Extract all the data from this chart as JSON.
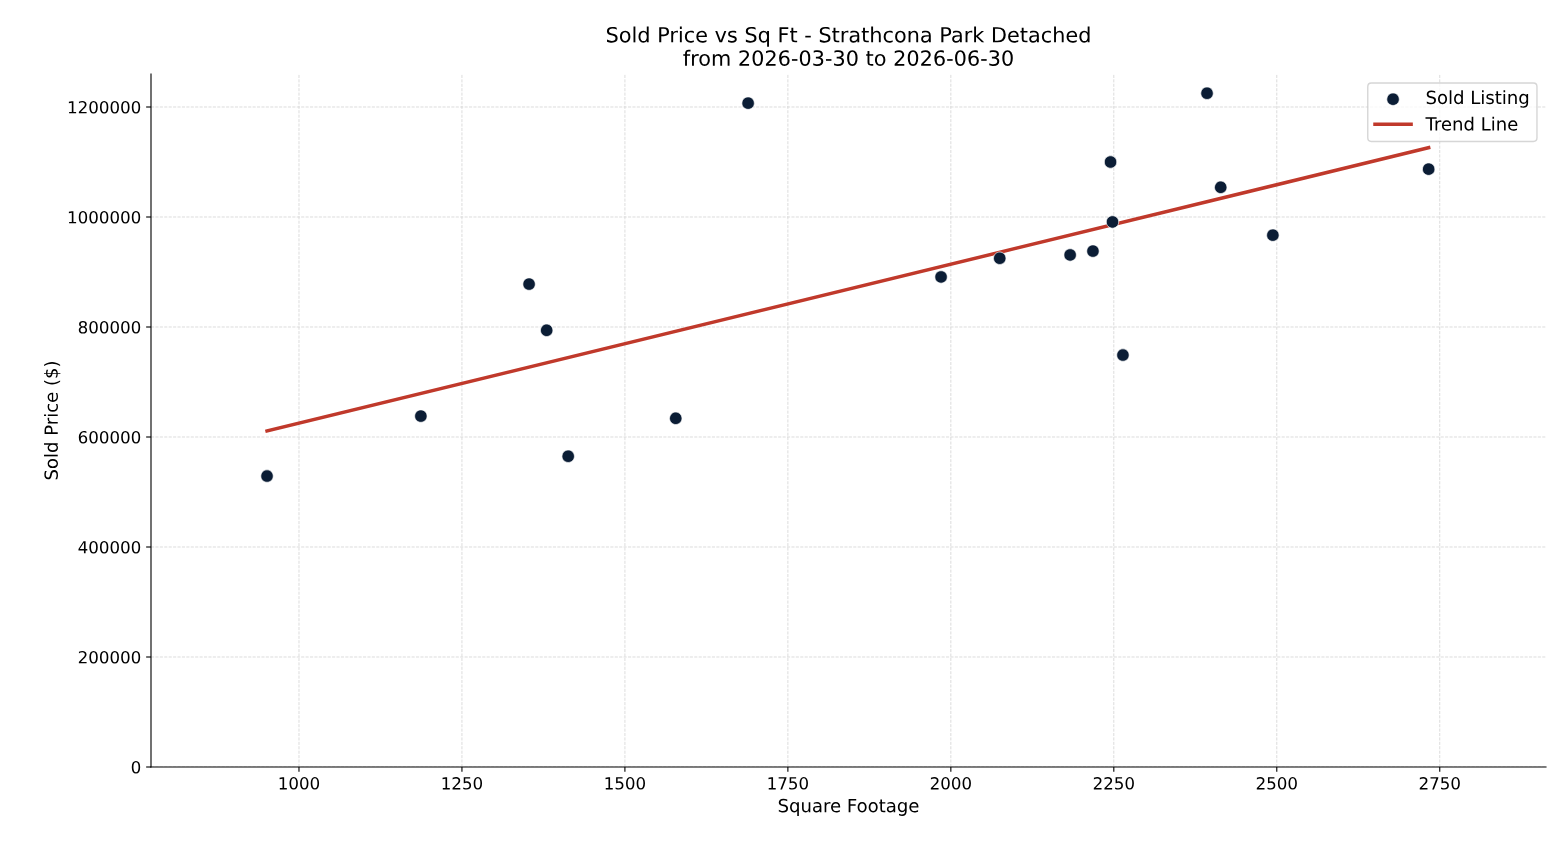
{
  "chart_data": {
    "type": "scatter",
    "title": "Sold Price vs Sq Ft - Strathcona Park Detached\nfrom 2026-03-30 to 2026-06-30",
    "xlabel": "Square Footage",
    "ylabel": "Sold Price ($)",
    "series": [
      {
        "name": "Sold Listing",
        "color": "#0b1d35",
        "marker": "circle",
        "x": [
          951,
          1187,
          1353,
          1380,
          1413,
          1578,
          1689,
          1985,
          2075,
          2183,
          2218,
          2245,
          2248,
          2264,
          2393,
          2414,
          2494,
          2733
        ],
        "values": [
          529000,
          638000,
          878000,
          794000,
          565000,
          634000,
          1207000,
          891000,
          925000,
          931000,
          938000,
          1100000,
          991000,
          749000,
          1225000,
          1054000,
          967000,
          1087000
        ]
      },
      {
        "name": "Trend Line",
        "type": "line",
        "color": "#c0392b",
        "line_style": "solid",
        "x": [
          951,
          2733
        ],
        "values": [
          611000,
          1126000
        ]
      }
    ],
    "xlim": [
      773,
      2913
    ],
    "ylim": [
      0,
      1260000
    ],
    "xticks": [
      1000,
      1250,
      1500,
      1750,
      2000,
      2250,
      2500,
      2750
    ],
    "yticks": [
      0,
      200000,
      400000,
      600000,
      800000,
      1000000,
      1200000
    ],
    "grid": true,
    "legend": "top right"
  }
}
